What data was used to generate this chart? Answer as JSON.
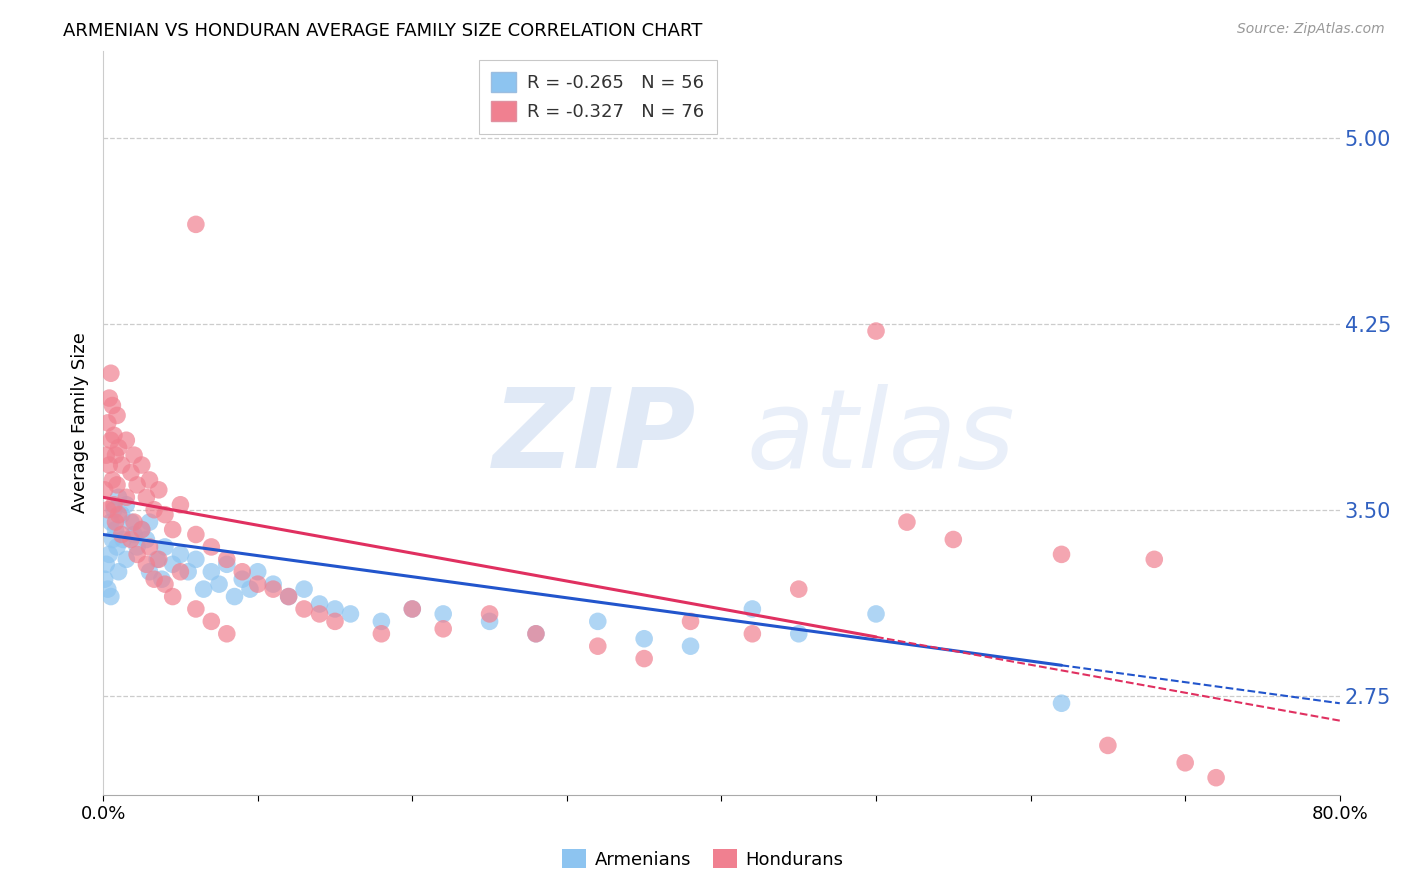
{
  "title": "ARMENIAN VS HONDURAN AVERAGE FAMILY SIZE CORRELATION CHART",
  "source": "Source: ZipAtlas.com",
  "ylabel": "Average Family Size",
  "yticks": [
    2.75,
    3.5,
    4.25,
    5.0
  ],
  "xlim": [
    0.0,
    0.8
  ],
  "ylim": [
    2.35,
    5.35
  ],
  "armenian_color": "#8DC4F0",
  "honduran_color": "#F08090",
  "trend_armenian_color": "#2255CC",
  "trend_honduran_color": "#E03060",
  "watermark_zip": "ZIP",
  "watermark_atlas": "atlas",
  "armenian_points": [
    [
      0.001,
      3.22
    ],
    [
      0.002,
      3.28
    ],
    [
      0.003,
      3.18
    ],
    [
      0.004,
      3.32
    ],
    [
      0.005,
      3.45
    ],
    [
      0.005,
      3.15
    ],
    [
      0.006,
      3.38
    ],
    [
      0.007,
      3.5
    ],
    [
      0.008,
      3.42
    ],
    [
      0.009,
      3.35
    ],
    [
      0.01,
      3.55
    ],
    [
      0.01,
      3.25
    ],
    [
      0.012,
      3.48
    ],
    [
      0.013,
      3.38
    ],
    [
      0.015,
      3.52
    ],
    [
      0.015,
      3.3
    ],
    [
      0.018,
      3.45
    ],
    [
      0.02,
      3.4
    ],
    [
      0.022,
      3.35
    ],
    [
      0.025,
      3.42
    ],
    [
      0.028,
      3.38
    ],
    [
      0.03,
      3.45
    ],
    [
      0.03,
      3.25
    ],
    [
      0.035,
      3.3
    ],
    [
      0.038,
      3.22
    ],
    [
      0.04,
      3.35
    ],
    [
      0.045,
      3.28
    ],
    [
      0.05,
      3.32
    ],
    [
      0.055,
      3.25
    ],
    [
      0.06,
      3.3
    ],
    [
      0.065,
      3.18
    ],
    [
      0.07,
      3.25
    ],
    [
      0.075,
      3.2
    ],
    [
      0.08,
      3.28
    ],
    [
      0.085,
      3.15
    ],
    [
      0.09,
      3.22
    ],
    [
      0.095,
      3.18
    ],
    [
      0.1,
      3.25
    ],
    [
      0.11,
      3.2
    ],
    [
      0.12,
      3.15
    ],
    [
      0.13,
      3.18
    ],
    [
      0.14,
      3.12
    ],
    [
      0.15,
      3.1
    ],
    [
      0.16,
      3.08
    ],
    [
      0.18,
      3.05
    ],
    [
      0.2,
      3.1
    ],
    [
      0.22,
      3.08
    ],
    [
      0.25,
      3.05
    ],
    [
      0.28,
      3.0
    ],
    [
      0.32,
      3.05
    ],
    [
      0.35,
      2.98
    ],
    [
      0.38,
      2.95
    ],
    [
      0.42,
      3.1
    ],
    [
      0.45,
      3.0
    ],
    [
      0.5,
      3.08
    ],
    [
      0.62,
      2.72
    ]
  ],
  "honduran_points": [
    [
      0.001,
      3.58
    ],
    [
      0.002,
      3.72
    ],
    [
      0.003,
      3.85
    ],
    [
      0.003,
      3.5
    ],
    [
      0.004,
      3.95
    ],
    [
      0.004,
      3.68
    ],
    [
      0.005,
      4.05
    ],
    [
      0.005,
      3.78
    ],
    [
      0.006,
      3.92
    ],
    [
      0.006,
      3.62
    ],
    [
      0.007,
      3.8
    ],
    [
      0.007,
      3.52
    ],
    [
      0.008,
      3.72
    ],
    [
      0.008,
      3.45
    ],
    [
      0.009,
      3.88
    ],
    [
      0.009,
      3.6
    ],
    [
      0.01,
      3.75
    ],
    [
      0.01,
      3.48
    ],
    [
      0.012,
      3.68
    ],
    [
      0.012,
      3.4
    ],
    [
      0.015,
      3.78
    ],
    [
      0.015,
      3.55
    ],
    [
      0.018,
      3.65
    ],
    [
      0.018,
      3.38
    ],
    [
      0.02,
      3.72
    ],
    [
      0.02,
      3.45
    ],
    [
      0.022,
      3.6
    ],
    [
      0.022,
      3.32
    ],
    [
      0.025,
      3.68
    ],
    [
      0.025,
      3.42
    ],
    [
      0.028,
      3.55
    ],
    [
      0.028,
      3.28
    ],
    [
      0.03,
      3.62
    ],
    [
      0.03,
      3.35
    ],
    [
      0.033,
      3.5
    ],
    [
      0.033,
      3.22
    ],
    [
      0.036,
      3.58
    ],
    [
      0.036,
      3.3
    ],
    [
      0.04,
      3.48
    ],
    [
      0.04,
      3.2
    ],
    [
      0.045,
      3.42
    ],
    [
      0.045,
      3.15
    ],
    [
      0.05,
      3.52
    ],
    [
      0.05,
      3.25
    ],
    [
      0.06,
      3.4
    ],
    [
      0.06,
      3.1
    ],
    [
      0.07,
      3.35
    ],
    [
      0.07,
      3.05
    ],
    [
      0.08,
      3.3
    ],
    [
      0.08,
      3.0
    ],
    [
      0.09,
      3.25
    ],
    [
      0.1,
      3.2
    ],
    [
      0.11,
      3.18
    ],
    [
      0.12,
      3.15
    ],
    [
      0.13,
      3.1
    ],
    [
      0.14,
      3.08
    ],
    [
      0.06,
      4.65
    ],
    [
      0.15,
      3.05
    ],
    [
      0.18,
      3.0
    ],
    [
      0.2,
      3.1
    ],
    [
      0.22,
      3.02
    ],
    [
      0.25,
      3.08
    ],
    [
      0.28,
      3.0
    ],
    [
      0.32,
      2.95
    ],
    [
      0.35,
      2.9
    ],
    [
      0.38,
      3.05
    ],
    [
      0.42,
      3.0
    ],
    [
      0.45,
      3.18
    ],
    [
      0.5,
      4.22
    ],
    [
      0.52,
      3.45
    ],
    [
      0.55,
      3.38
    ],
    [
      0.62,
      3.32
    ],
    [
      0.65,
      2.55
    ],
    [
      0.68,
      3.3
    ],
    [
      0.7,
      2.48
    ],
    [
      0.72,
      2.42
    ]
  ]
}
